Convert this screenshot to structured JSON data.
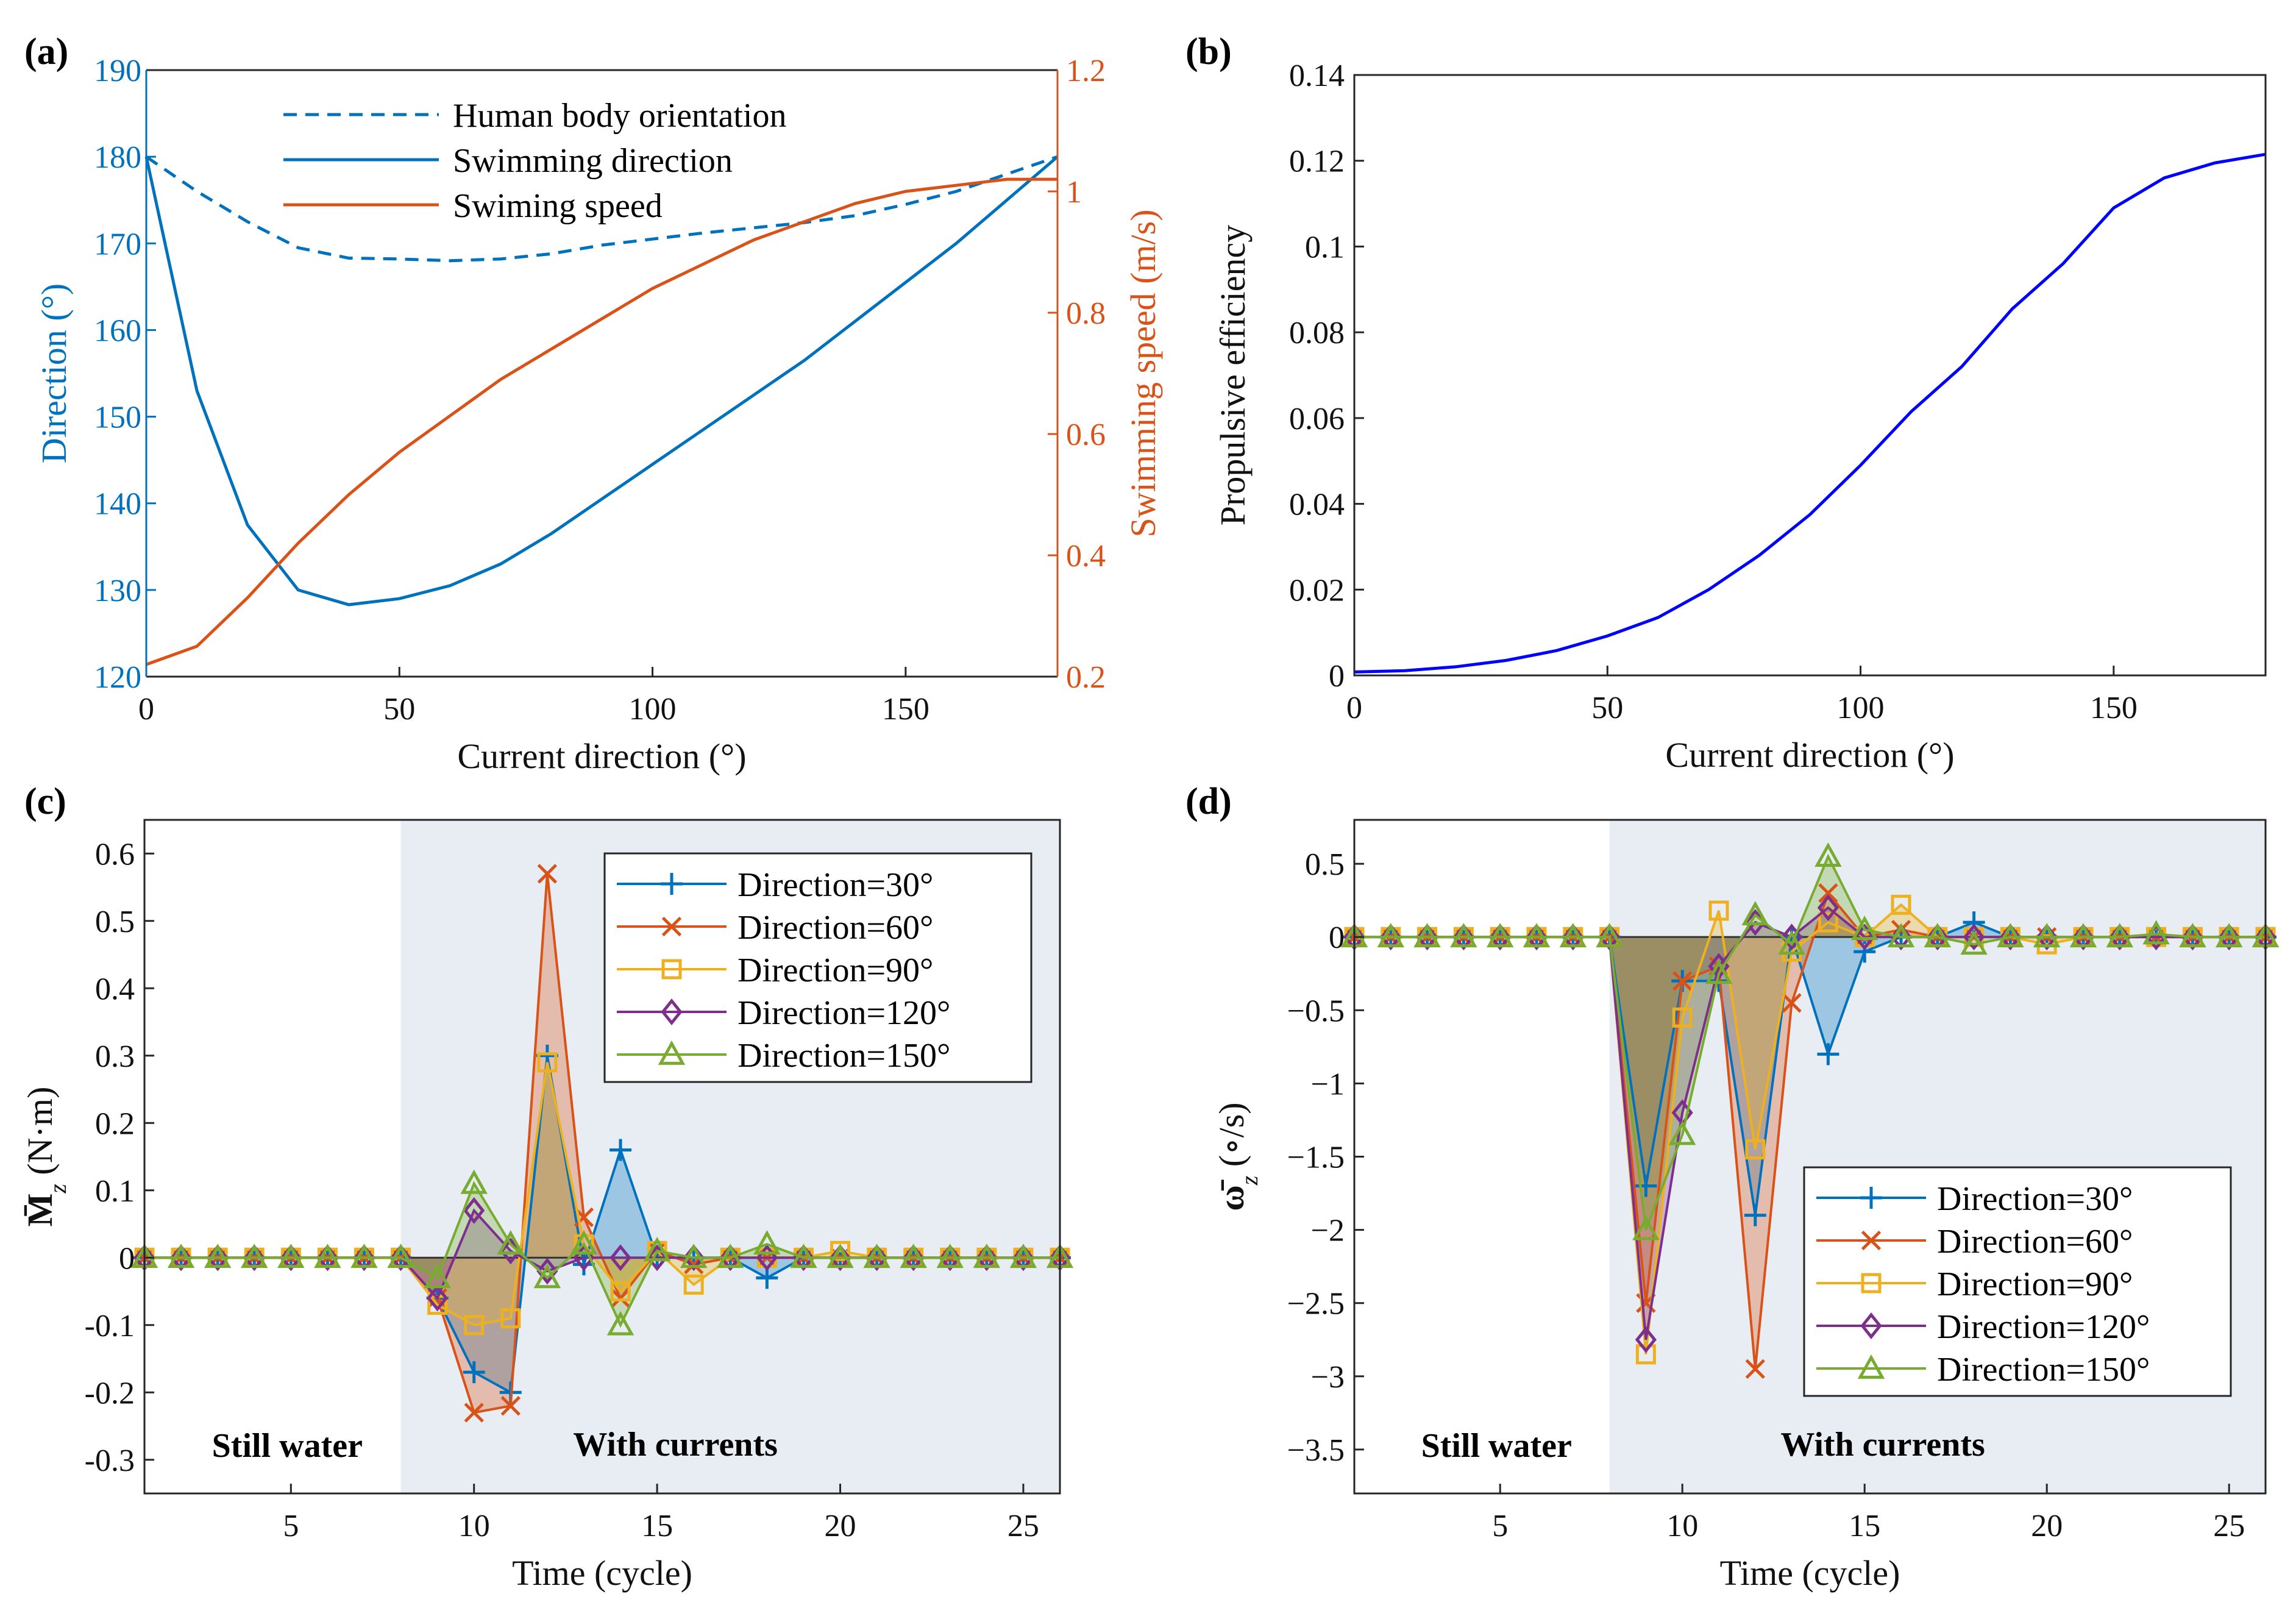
{
  "colors": {
    "blue": "#0072BD",
    "orange": "#D95319",
    "yellow": "#EDB120",
    "purple": "#7E2F8E",
    "green": "#77AC30",
    "pure_blue": "#0000FF",
    "shade": "#E8EDF4",
    "axis": "#262626"
  },
  "chart_data": [
    {
      "panel": "(a)",
      "type": "line",
      "xlabel": "Current direction (°)",
      "ylabel": "Direction (°)",
      "y2label": "Swimming speed (m/s)",
      "xlim": [
        0,
        180
      ],
      "ylim": [
        120,
        190
      ],
      "y2lim": [
        0.2,
        1.2
      ],
      "xticks": [
        "0",
        "50",
        "100",
        "150"
      ],
      "yticks": [
        "120",
        "130",
        "140",
        "150",
        "160",
        "170",
        "180",
        "190"
      ],
      "y2ticks": [
        "0.2",
        "0.4",
        "0.6",
        "0.8",
        "1",
        "1.2"
      ],
      "x": [
        0,
        10,
        20,
        30,
        40,
        50,
        60,
        70,
        80,
        90,
        100,
        110,
        120,
        130,
        140,
        150,
        160,
        170,
        180
      ],
      "series": [
        {
          "name": "Human body orientation",
          "axis": "left",
          "style": "dashed",
          "color": "#0072BD",
          "values": [
            180,
            176,
            172.5,
            169.5,
            168.3,
            168.2,
            168,
            168.2,
            168.8,
            169.8,
            170.5,
            171.2,
            171.8,
            172.4,
            173.2,
            174.5,
            176,
            178,
            180
          ]
        },
        {
          "name": "Swimming direction",
          "axis": "left",
          "style": "solid",
          "color": "#0072BD",
          "values": [
            180,
            153,
            137.5,
            130,
            128.3,
            129,
            130.5,
            133,
            136.5,
            140.5,
            144.5,
            148.5,
            152.5,
            156.5,
            161,
            165.5,
            170,
            175,
            180
          ]
        },
        {
          "name": "Swiming speed",
          "axis": "right",
          "style": "solid",
          "color": "#D95319",
          "values": [
            0.22,
            0.25,
            0.33,
            0.42,
            0.5,
            0.57,
            0.63,
            0.69,
            0.74,
            0.79,
            0.84,
            0.88,
            0.92,
            0.95,
            0.98,
            1.0,
            1.01,
            1.02,
            1.02
          ]
        }
      ],
      "legend": [
        "Human body orientation",
        "Swimming direction",
        "Swiming speed"
      ]
    },
    {
      "panel": "(b)",
      "type": "line",
      "xlabel": "Current direction (°)",
      "ylabel": "Propulsive efficiency",
      "xlim": [
        0,
        180
      ],
      "ylim": [
        0,
        0.14
      ],
      "xticks": [
        "0",
        "50",
        "100",
        "150"
      ],
      "yticks": [
        "0",
        "0.02",
        "0.04",
        "0.06",
        "0.08",
        "0.1",
        "0.12",
        "0.14"
      ],
      "x": [
        0,
        10,
        20,
        30,
        40,
        50,
        60,
        70,
        80,
        90,
        100,
        110,
        120,
        130,
        140,
        150,
        160,
        170,
        180
      ],
      "series": [
        {
          "name": "Propulsive efficiency",
          "color": "#0000FF",
          "values": [
            0.0008,
            0.0011,
            0.002,
            0.0035,
            0.0058,
            0.0092,
            0.0135,
            0.02,
            0.028,
            0.0375,
            0.049,
            0.0615,
            0.072,
            0.0855,
            0.096,
            0.109,
            0.116,
            0.1195,
            0.1215
          ]
        }
      ]
    },
    {
      "panel": "(c)",
      "type": "line",
      "xlabel": "Time (cycle)",
      "ylabel": "M̄z (N·m)",
      "ylabel_main": "M̄",
      "ylabel_sub": "z",
      "ylabel_unit": " (N·m)",
      "xlim": [
        1,
        26
      ],
      "ylim": [
        -0.35,
        0.65
      ],
      "xticks": [
        "5",
        "10",
        "15",
        "20",
        "25"
      ],
      "yticks": [
        "-0.3",
        "-0.2",
        "-0.1",
        "0",
        "0.1",
        "0.2",
        "0.3",
        "0.4",
        "0.5",
        "0.6"
      ],
      "shaded_from": 8,
      "region_left": "Still water",
      "region_right": "With currents",
      "x": [
        1,
        2,
        3,
        4,
        5,
        6,
        7,
        8,
        9,
        10,
        11,
        12,
        13,
        14,
        15,
        16,
        17,
        18,
        19,
        20,
        21,
        22,
        23,
        24,
        25,
        26
      ],
      "series": [
        {
          "name": "Direction=30°",
          "marker": "plus",
          "color": "#0072BD",
          "values": [
            0,
            0,
            0,
            0,
            0,
            0,
            0,
            0,
            -0.06,
            -0.17,
            -0.2,
            0.3,
            -0.01,
            0.16,
            0,
            0,
            0,
            -0.03,
            0,
            0,
            0,
            0,
            0,
            0,
            0,
            0
          ]
        },
        {
          "name": "Direction=60°",
          "marker": "x",
          "color": "#D95319",
          "values": [
            0,
            0,
            0,
            0,
            0,
            0,
            0,
            0,
            -0.06,
            -0.23,
            -0.22,
            0.57,
            0.06,
            -0.06,
            0.01,
            -0.01,
            0,
            0,
            0,
            0,
            0,
            0,
            0,
            0,
            0,
            0
          ]
        },
        {
          "name": "Direction=90°",
          "marker": "square",
          "color": "#EDB120",
          "values": [
            0,
            0,
            0,
            0,
            0,
            0,
            0,
            0,
            -0.07,
            -0.1,
            -0.09,
            0.29,
            0.02,
            -0.05,
            0.01,
            -0.04,
            0,
            0,
            0,
            0.01,
            0,
            0,
            0,
            0,
            0,
            0
          ]
        },
        {
          "name": "Direction=120°",
          "marker": "diamond",
          "color": "#7E2F8E",
          "values": [
            0,
            0,
            0,
            0,
            0,
            0,
            0,
            0,
            -0.06,
            0.07,
            0.01,
            -0.02,
            0,
            0,
            0,
            0,
            0,
            0,
            0,
            0,
            0,
            0,
            0,
            0,
            0,
            0
          ]
        },
        {
          "name": "Direction=150°",
          "marker": "triangle",
          "color": "#77AC30",
          "values": [
            0,
            0,
            0,
            0,
            0,
            0,
            0,
            0,
            -0.03,
            0.11,
            0.02,
            -0.03,
            0.02,
            -0.1,
            0.01,
            0,
            0,
            0.02,
            0,
            0,
            0,
            0,
            0,
            0,
            0,
            0
          ]
        }
      ],
      "legend_position": "top-right"
    },
    {
      "panel": "(d)",
      "type": "line",
      "xlabel": "Time (cycle)",
      "ylabel": "ω̄z (°/s)",
      "ylabel_main": "ω̄",
      "ylabel_sub": "z",
      "ylabel_unit": " (∘/s)",
      "xlim": [
        1,
        26
      ],
      "ylim": [
        -3.8,
        0.8
      ],
      "xticks": [
        "5",
        "10",
        "15",
        "20",
        "25"
      ],
      "yticks": [
        "−3.5",
        "−3",
        "−2.5",
        "−2",
        "−1.5",
        "−1",
        "−0.5",
        "0",
        "0.5"
      ],
      "shaded_from": 8,
      "region_left": "Still water",
      "region_right": "With currents",
      "x": [
        1,
        2,
        3,
        4,
        5,
        6,
        7,
        8,
        9,
        10,
        11,
        12,
        13,
        14,
        15,
        16,
        17,
        18,
        19,
        20,
        21,
        22,
        23,
        24,
        25,
        26
      ],
      "series": [
        {
          "name": "Direction=30°",
          "marker": "plus",
          "color": "#0072BD",
          "values": [
            0,
            0,
            0,
            0,
            0,
            0,
            0,
            0,
            -1.7,
            -0.3,
            -0.3,
            -1.9,
            0,
            -0.8,
            -0.1,
            0,
            0,
            0.1,
            0,
            0,
            0,
            0,
            0,
            0,
            0,
            0
          ]
        },
        {
          "name": "Direction=60°",
          "marker": "x",
          "color": "#D95319",
          "values": [
            0,
            0,
            0,
            0,
            0,
            0,
            0,
            0,
            -2.5,
            -0.3,
            -0.2,
            -2.95,
            -0.45,
            0.3,
            0,
            0.05,
            0,
            0,
            0,
            0,
            0,
            0,
            0,
            0,
            0,
            0
          ]
        },
        {
          "name": "Direction=90°",
          "marker": "square",
          "color": "#EDB120",
          "values": [
            0,
            0,
            0,
            0,
            0,
            0,
            0,
            0,
            -2.85,
            -0.55,
            0.18,
            -1.45,
            -0.1,
            0.1,
            0,
            0.22,
            0,
            0,
            0,
            -0.05,
            0,
            0,
            0,
            0,
            0,
            0
          ]
        },
        {
          "name": "Direction=120°",
          "marker": "diamond",
          "color": "#7E2F8E",
          "values": [
            0,
            0,
            0,
            0,
            0,
            0,
            0,
            0,
            -2.75,
            -1.2,
            -0.2,
            0.1,
            0,
            0.2,
            0,
            0,
            0,
            0,
            0,
            0,
            0,
            0,
            0,
            0,
            0,
            0
          ]
        },
        {
          "name": "Direction=150°",
          "marker": "triangle",
          "color": "#77AC30",
          "values": [
            0,
            0,
            0,
            0,
            0,
            0,
            0,
            0,
            -2.0,
            -1.35,
            -0.25,
            0.15,
            -0.05,
            0.55,
            0.05,
            0,
            0,
            -0.05,
            0,
            0,
            0,
            0,
            0.02,
            0,
            0,
            0
          ]
        }
      ],
      "legend_position": "bottom-right"
    }
  ]
}
